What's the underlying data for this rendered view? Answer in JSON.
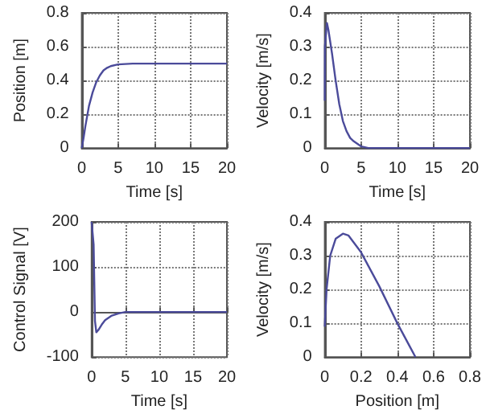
{
  "chart_data": [
    {
      "type": "line",
      "xlabel": "Time [s]",
      "ylabel": "Position [m]",
      "xlim": [
        0,
        20
      ],
      "ylim": [
        0,
        0.8
      ],
      "xticks": [
        0,
        5,
        10,
        15,
        20
      ],
      "yticks": [
        0,
        0.2,
        0.4,
        0.6,
        0.8
      ],
      "grid": true,
      "x": [
        0,
        0.25,
        0.5,
        1,
        1.5,
        2,
        2.5,
        3,
        3.5,
        4,
        5,
        7,
        10,
        15,
        20
      ],
      "series": [
        {
          "color": "#4b4b9a",
          "values": [
            0,
            0.06,
            0.13,
            0.25,
            0.33,
            0.39,
            0.43,
            0.46,
            0.475,
            0.485,
            0.495,
            0.5,
            0.5,
            0.5,
            0.5
          ]
        }
      ]
    },
    {
      "type": "line",
      "xlabel": "Time [s]",
      "ylabel": "Velocity [m/s]",
      "xlim": [
        0,
        20
      ],
      "ylim": [
        0,
        0.4
      ],
      "xticks": [
        0,
        5,
        10,
        15,
        20
      ],
      "yticks": [
        0,
        0.1,
        0.2,
        0.3,
        0.4
      ],
      "grid": true,
      "x": [
        0,
        0.02,
        0.3,
        0.5,
        1,
        1.5,
        2,
        2.5,
        3,
        3.5,
        4,
        5,
        6,
        10,
        20
      ],
      "series": [
        {
          "color": "#4b4b9a",
          "values": [
            0.14,
            0.3,
            0.37,
            0.35,
            0.28,
            0.2,
            0.13,
            0.08,
            0.05,
            0.03,
            0.02,
            0.005,
            0,
            0,
            0
          ]
        }
      ]
    },
    {
      "type": "line",
      "xlabel": "Time [s]",
      "ylabel": "Control Signal [V]",
      "xlim": [
        0,
        20
      ],
      "ylim": [
        -100,
        200
      ],
      "xticks": [
        0,
        5,
        10,
        15,
        20
      ],
      "yticks": [
        -100,
        0,
        100,
        200
      ],
      "grid": true,
      "x": [
        0,
        0.1,
        0.3,
        0.5,
        0.7,
        1,
        1.5,
        2,
        3,
        4,
        5,
        10,
        20
      ],
      "series": [
        {
          "color": "#4b4b9a",
          "values": [
            200,
            200,
            150,
            -20,
            -45,
            -40,
            -28,
            -18,
            -8,
            -3,
            0,
            0,
            0
          ]
        }
      ]
    },
    {
      "type": "line",
      "xlabel": "Position [m]",
      "ylabel": "Velocity [m/s]",
      "xlim": [
        0,
        0.8
      ],
      "ylim": [
        0,
        0.4
      ],
      "xticks": [
        0,
        0.2,
        0.4,
        0.6,
        0.8
      ],
      "yticks": [
        0,
        0.1,
        0.2,
        0.3,
        0.4
      ],
      "grid": true,
      "x": [
        0,
        0.01,
        0.03,
        0.06,
        0.1,
        0.13,
        0.2,
        0.3,
        0.4,
        0.5
      ],
      "series": [
        {
          "color": "#4b4b9a",
          "values": [
            0.09,
            0.2,
            0.3,
            0.35,
            0.365,
            0.36,
            0.31,
            0.21,
            0.1,
            0
          ]
        }
      ]
    }
  ]
}
